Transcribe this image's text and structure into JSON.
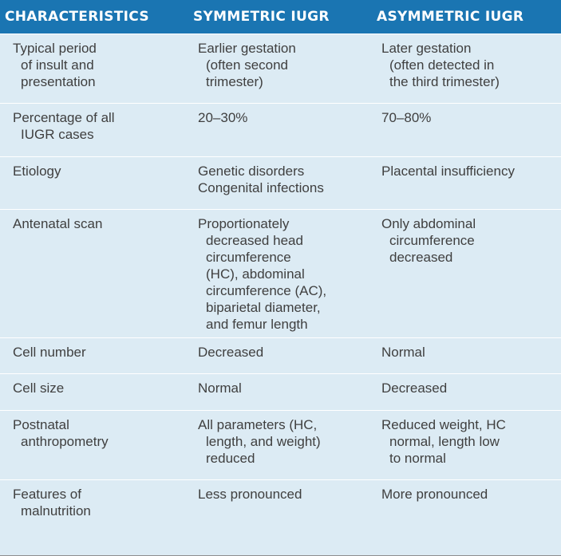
{
  "header": {
    "col1": "CHARACTERISTICS",
    "col2": "SYMMETRIC IUGR",
    "col3": "ASYMMETRIC IUGR"
  },
  "rows": [
    {
      "characteristic": [
        "Typical period",
        "of insult and",
        "presentation"
      ],
      "symmetric": [
        "Earlier gestation",
        "(often second",
        "trimester)"
      ],
      "asymmetric": [
        "Later gestation",
        "(often detected in",
        "the third trimester)"
      ]
    },
    {
      "characteristic": [
        "Percentage of all",
        "IUGR cases"
      ],
      "symmetric": [
        "20–30%"
      ],
      "asymmetric": [
        "70–80%"
      ]
    },
    {
      "characteristic": [
        "Etiology"
      ],
      "symmetric": [
        "Genetic disorders",
        "Congenital infections"
      ],
      "asymmetric": [
        "Placental insufficiency"
      ]
    },
    {
      "characteristic": [
        "Antenatal scan"
      ],
      "symmetric": [
        "Proportionately",
        "decreased head",
        "circumference",
        "(HC), abdominal",
        "circumference (AC),",
        "biparietal diameter,",
        "and femur length"
      ],
      "asymmetric": [
        "Only abdominal",
        "circumference",
        "decreased"
      ]
    },
    {
      "characteristic": [
        "Cell number"
      ],
      "symmetric": [
        "Decreased"
      ],
      "asymmetric": [
        "Normal"
      ]
    },
    {
      "characteristic": [
        "Cell size"
      ],
      "symmetric": [
        "Normal"
      ],
      "asymmetric": [
        "Decreased"
      ]
    },
    {
      "characteristic": [
        "Postnatal",
        "anthropometry"
      ],
      "symmetric": [
        "All parameters (HC,",
        "length, and weight)",
        "reduced"
      ],
      "asymmetric": [
        "Reduced weight, HC",
        "normal, length low",
        "to normal"
      ]
    },
    {
      "characteristic": [
        "Features of",
        "malnutrition"
      ],
      "symmetric": [
        "Less pronounced"
      ],
      "asymmetric": [
        "More pronounced"
      ]
    }
  ],
  "colors": {
    "header_bg": "#1a75b2",
    "header_text": "#ffffff",
    "body_bg": "#dcebf4",
    "body_text": "#3f3f3f"
  }
}
